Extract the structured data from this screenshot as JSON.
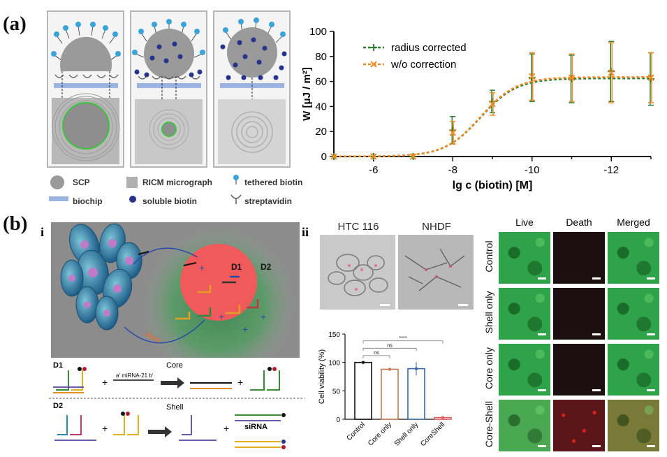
{
  "panel_a": {
    "label": "(a)",
    "legend": {
      "scp": "SCP",
      "ricm": "RICM micrograph",
      "tethered": "tethered biotin",
      "biochip": "biochip",
      "soluble": "soluble biotin",
      "streptavidin": "streptavidin"
    },
    "colors": {
      "scp": "#9a9a9a",
      "biochip": "#9bb3e0",
      "tethered": "#3aa3d8",
      "soluble": "#27348b",
      "ring": "#3cc43c"
    }
  },
  "chart_data": {
    "type": "line",
    "ylabel": "W [μJ / m²]",
    "xlabel": "lg c (biotin) [M]",
    "x_ticks": [
      "-6",
      "-8",
      "-10",
      "-12"
    ],
    "y_ticks": [
      "0",
      "20",
      "40",
      "60",
      "80",
      "100"
    ],
    "ylim": [
      0,
      100
    ],
    "xlim": [
      -5,
      -13
    ],
    "series": [
      {
        "name": "radius corrected",
        "color": "#2e7d32",
        "marker": "+",
        "x": [
          -5,
          -6,
          -7,
          -8,
          -9,
          -10,
          -11,
          -12,
          -13
        ],
        "y": [
          0,
          0,
          0,
          21,
          44,
          63,
          62,
          68,
          62
        ],
        "err": [
          0,
          0,
          0,
          11,
          9,
          19,
          19,
          24,
          21
        ]
      },
      {
        "name": "w/o correction",
        "color": "#f08a24",
        "marker": "x",
        "x": [
          -5,
          -6,
          -7,
          -8,
          -9,
          -10,
          -11,
          -12,
          -13
        ],
        "y": [
          0,
          0,
          0,
          19,
          42,
          64,
          63,
          67,
          63
        ],
        "err": [
          0,
          0,
          0,
          9,
          9,
          19,
          19,
          24,
          20
        ]
      }
    ]
  },
  "panel_b": {
    "label": "(b)",
    "sub_i": "i",
    "sub_ii": "ii",
    "d1": "D1",
    "d2": "D2",
    "core": "Core",
    "shell": "Shell",
    "mirna": "miRNA-21",
    "sirna": "siRNA",
    "micrographs": {
      "htc": "HTC 116",
      "nhdf": "NHDF"
    },
    "fluor_cols": [
      "Live",
      "Death",
      "Merged"
    ],
    "fluor_rows": [
      "Control",
      "Shell only",
      "Core only",
      "Core-Shell"
    ]
  },
  "viability_chart": {
    "type": "bar",
    "ylabel": "Cell viability (%)",
    "categories": [
      "Control",
      "Core only",
      "Shell only",
      "CoreShell"
    ],
    "values": [
      100,
      88,
      89,
      3
    ],
    "err": [
      1,
      2,
      12,
      2
    ],
    "colors": [
      "#111111",
      "#c87850",
      "#3a66a8",
      "#e06060"
    ],
    "y_ticks": [
      "0",
      "50",
      "100",
      "150"
    ],
    "ylim": [
      0,
      150
    ],
    "sig": [
      "ns",
      "ns",
      "****"
    ]
  }
}
